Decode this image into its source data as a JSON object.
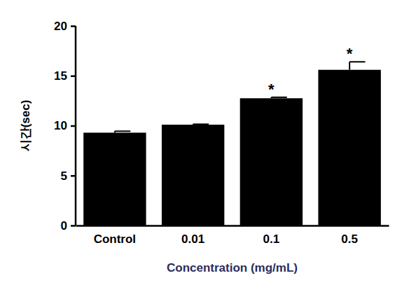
{
  "chart_data": {
    "type": "bar",
    "y_label": "시간(sec)",
    "x_label": "Concentration (mg/mL)",
    "categories": [
      "Control",
      "0.01",
      "0.1",
      "0.5"
    ],
    "values": [
      9.3,
      10.1,
      12.75,
      15.6
    ],
    "errors": [
      0.15,
      0.05,
      0.1,
      0.8
    ],
    "significance": [
      null,
      null,
      "*",
      "*"
    ],
    "color": "#000000",
    "ylim": [
      0,
      20
    ],
    "yticks": [
      0,
      5,
      10,
      15,
      20
    ],
    "grid": false
  }
}
